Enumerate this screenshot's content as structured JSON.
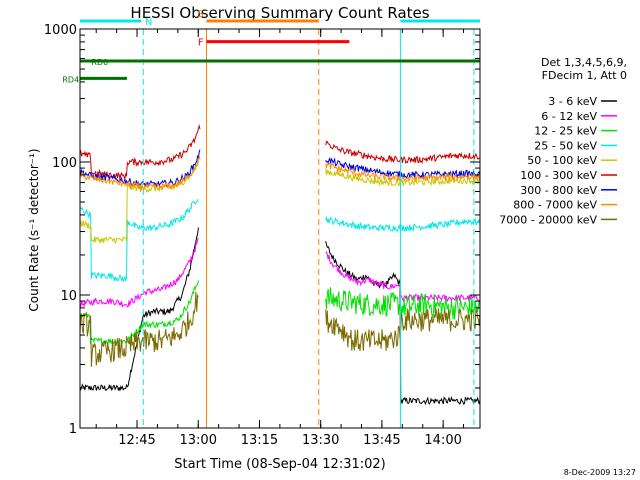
{
  "chart_data": {
    "type": "line",
    "title": "HESSI Observing Summary Count Rates",
    "xlabel": "Start Time (08-Sep-04 12:31:02)",
    "ylabel": "Count Rate (s⁻¹ detector⁻¹)",
    "yscale": "log",
    "ylim": [
      1,
      1000
    ],
    "xlim_min": [
      0,
      98
    ],
    "x_unit": "minutes since 12:31:02",
    "y_ticks": [
      {
        "v": 1,
        "label": "1"
      },
      {
        "v": 10,
        "label": "10"
      },
      {
        "v": 100,
        "label": "100"
      },
      {
        "v": 1000,
        "label": "1000"
      }
    ],
    "x_ticks": [
      {
        "t": 13.97,
        "label": "12:45"
      },
      {
        "t": 28.97,
        "label": "13:00"
      },
      {
        "t": 43.97,
        "label": "13:15"
      },
      {
        "t": 58.97,
        "label": "13:30"
      },
      {
        "t": 73.97,
        "label": "13:45"
      },
      {
        "t": 88.97,
        "label": "14:00"
      }
    ],
    "legend": {
      "header": [
        "Det 1,3,4,5,6,9,",
        "FDecim 1, Att 0"
      ],
      "entries": [
        {
          "label": "3 - 6 keV",
          "color": "#000000"
        },
        {
          "label": "6 - 12 keV",
          "color": "#ff00ff"
        },
        {
          "label": "12 - 25 keV",
          "color": "#00e000"
        },
        {
          "label": "25 - 50 keV",
          "color": "#00e8e8"
        },
        {
          "label": "50 - 100 keV",
          "color": "#c8c800"
        },
        {
          "label": "100 - 300 keV",
          "color": "#cc0000"
        },
        {
          "label": "300 - 800 keV",
          "color": "#0000e0"
        },
        {
          "label": "800 - 7000 keV",
          "color": "#ff8c00"
        },
        {
          "label": "7000 - 20000 keV",
          "color": "#7a6a00"
        }
      ]
    },
    "flags": [
      {
        "label": "N",
        "color": "#00e8e8",
        "row": 1000,
        "segments": [
          [
            0,
            15
          ],
          [
            78.5,
            98
          ]
        ]
      },
      {
        "label": "S",
        "color": "#ff8000",
        "row": 1000,
        "segments": [
          [
            31,
            58.5
          ]
        ]
      },
      {
        "label": "F",
        "color": "#ff0000",
        "row": 700,
        "segments": [
          [
            31,
            66
          ]
        ]
      },
      {
        "label": "RD0",
        "color": "#007000",
        "row": 500,
        "segments": [
          [
            0,
            98
          ]
        ]
      },
      {
        "label": "RD4",
        "color": "#007000",
        "row": 370,
        "segments": [
          [
            0,
            11.5
          ]
        ]
      }
    ],
    "vertical_markers": [
      {
        "t": 15.5,
        "color": "#00e8e8",
        "style": "dashed"
      },
      {
        "t": 31.0,
        "color": "#ff8000",
        "style": "solid"
      },
      {
        "t": 58.5,
        "color": "#ff8000",
        "style": "dashed"
      },
      {
        "t": 78.5,
        "color": "#00e8e8",
        "style": "solid"
      },
      {
        "t": 96.5,
        "color": "#00e8e8",
        "style": "dashed"
      }
    ],
    "segments": [
      [
        0,
        30.2
      ],
      [
        60.2,
        98
      ]
    ],
    "series": [
      {
        "label": "3 - 6 keV",
        "color": "#000000",
        "seg1": [
          [
            0,
            2
          ],
          [
            2.5,
            2
          ],
          [
            7,
            2
          ],
          [
            11.5,
            2
          ],
          [
            15.5,
            7
          ],
          [
            18,
            7.5
          ],
          [
            22,
            7.5
          ],
          [
            25,
            10
          ],
          [
            27,
            16
          ],
          [
            29,
            32
          ]
        ],
        "seg2": [
          [
            60.2,
            24
          ],
          [
            62,
            19
          ],
          [
            65,
            15
          ],
          [
            68,
            13
          ],
          [
            70,
            14
          ],
          [
            72,
            12
          ],
          [
            75,
            12
          ],
          [
            77,
            14
          ],
          [
            78.4,
            12
          ],
          [
            78.6,
            1.6
          ],
          [
            83,
            1.6
          ],
          [
            88,
            1.6
          ],
          [
            93,
            1.6
          ],
          [
            98,
            1.6
          ]
        ]
      },
      {
        "label": "6 - 12 keV",
        "color": "#ff00ff",
        "seg1": [
          [
            0,
            8.5
          ],
          [
            4,
            9
          ],
          [
            8,
            9
          ],
          [
            11.5,
            8.5
          ],
          [
            14,
            9.5
          ],
          [
            16,
            10.5
          ],
          [
            20,
            11
          ],
          [
            24,
            13
          ],
          [
            27,
            18
          ],
          [
            29,
            26
          ]
        ],
        "seg2": [
          [
            60.2,
            21
          ],
          [
            62,
            17
          ],
          [
            65,
            14
          ],
          [
            68,
            12.5
          ],
          [
            71,
            13
          ],
          [
            73,
            12
          ],
          [
            76,
            11.5
          ],
          [
            78.4,
            12
          ],
          [
            78.6,
            9.5
          ],
          [
            83,
            9.5
          ],
          [
            88,
            9.5
          ],
          [
            93,
            9.5
          ],
          [
            98,
            9.5
          ]
        ]
      },
      {
        "label": "12 - 25 keV",
        "color": "#00e000",
        "seg1": [
          [
            0,
            7
          ],
          [
            2.5,
            7
          ],
          [
            2.6,
            4.5
          ],
          [
            7,
            4.5
          ],
          [
            11.5,
            4.5
          ],
          [
            15.5,
            6
          ],
          [
            20,
            6
          ],
          [
            24,
            6.5
          ],
          [
            27,
            9
          ],
          [
            29,
            13
          ]
        ],
        "seg2": [
          [
            60.2,
            9.5
          ],
          [
            65,
            9
          ],
          [
            70,
            8.5
          ],
          [
            75,
            8.5
          ],
          [
            78.4,
            8.5
          ],
          [
            78.6,
            8
          ],
          [
            85,
            8.5
          ],
          [
            90,
            8
          ],
          [
            98,
            8
          ]
        ]
      },
      {
        "label": "25 - 50 keV",
        "color": "#00e8e8",
        "seg1": [
          [
            0,
            45
          ],
          [
            1,
            43
          ],
          [
            2.6,
            40
          ],
          [
            2.7,
            14
          ],
          [
            7,
            14
          ],
          [
            11.5,
            13
          ],
          [
            11.6,
            36
          ],
          [
            14,
            32
          ],
          [
            18,
            32
          ],
          [
            22,
            34
          ],
          [
            25,
            38
          ],
          [
            27,
            45
          ],
          [
            29,
            55
          ]
        ],
        "seg2": [
          [
            60.2,
            37
          ],
          [
            64,
            35
          ],
          [
            68,
            33
          ],
          [
            72,
            32
          ],
          [
            76,
            32
          ],
          [
            80,
            32
          ],
          [
            85,
            33
          ],
          [
            90,
            34
          ],
          [
            95,
            36
          ],
          [
            98,
            35
          ]
        ]
      },
      {
        "label": "50 - 100 keV",
        "color": "#c8c800",
        "seg1": [
          [
            0,
            35
          ],
          [
            2.6,
            33
          ],
          [
            2.7,
            26
          ],
          [
            7,
            26
          ],
          [
            11.5,
            26
          ],
          [
            11.6,
            65
          ],
          [
            15,
            63
          ],
          [
            18,
            63
          ],
          [
            22,
            64
          ],
          [
            25,
            70
          ],
          [
            27,
            80
          ],
          [
            29,
            100
          ]
        ],
        "seg2": [
          [
            60.2,
            85
          ],
          [
            64,
            80
          ],
          [
            68,
            75
          ],
          [
            72,
            72
          ],
          [
            76,
            70
          ],
          [
            80,
            70
          ],
          [
            85,
            71
          ],
          [
            90,
            72
          ],
          [
            95,
            73
          ],
          [
            98,
            72
          ]
        ]
      },
      {
        "label": "100 - 300 keV",
        "color": "#cc0000",
        "seg1": [
          [
            0,
            115
          ],
          [
            2.6,
            110
          ],
          [
            2.7,
            83
          ],
          [
            7,
            80
          ],
          [
            11.5,
            78
          ],
          [
            11.6,
            100
          ],
          [
            15,
            100
          ],
          [
            19,
            100
          ],
          [
            23,
            105
          ],
          [
            26,
            120
          ],
          [
            28,
            145
          ],
          [
            29.5,
            190
          ]
        ],
        "seg2": [
          [
            60.2,
            140
          ],
          [
            63,
            125
          ],
          [
            66,
            118
          ],
          [
            70,
            112
          ],
          [
            74,
            106
          ],
          [
            78,
            104
          ],
          [
            83,
            104
          ],
          [
            88,
            108
          ],
          [
            92,
            112
          ],
          [
            95,
            112
          ],
          [
            98,
            110
          ]
        ]
      },
      {
        "label": "300 - 800 keV",
        "color": "#0000e0",
        "seg1": [
          [
            0,
            85
          ],
          [
            3,
            78
          ],
          [
            7,
            76
          ],
          [
            11.5,
            72
          ],
          [
            15,
            68
          ],
          [
            19,
            68
          ],
          [
            23,
            70
          ],
          [
            26,
            78
          ],
          [
            28,
            95
          ],
          [
            29.5,
            120
          ]
        ],
        "seg2": [
          [
            60.2,
            105
          ],
          [
            64,
            95
          ],
          [
            68,
            90
          ],
          [
            72,
            85
          ],
          [
            76,
            82
          ],
          [
            80,
            80
          ],
          [
            85,
            80
          ],
          [
            90,
            81
          ],
          [
            95,
            82
          ],
          [
            98,
            80
          ]
        ]
      },
      {
        "label": "800 - 7000 keV",
        "color": "#ff8c00",
        "seg1": [
          [
            0,
            80
          ],
          [
            3,
            75
          ],
          [
            7,
            72
          ],
          [
            11.5,
            68
          ],
          [
            15,
            65
          ],
          [
            19,
            65
          ],
          [
            23,
            66
          ],
          [
            26,
            74
          ],
          [
            28,
            88
          ],
          [
            29.5,
            110
          ]
        ],
        "seg2": [
          [
            60.2,
            95
          ],
          [
            64,
            88
          ],
          [
            68,
            82
          ],
          [
            72,
            78
          ],
          [
            76,
            76
          ],
          [
            80,
            75
          ],
          [
            85,
            76
          ],
          [
            90,
            77
          ],
          [
            95,
            78
          ],
          [
            98,
            76
          ]
        ]
      },
      {
        "label": "7000 - 20000 keV",
        "color": "#7a6a00",
        "seg1": [
          [
            0,
            6
          ],
          [
            2.6,
            6
          ],
          [
            2.7,
            3.5
          ],
          [
            7,
            3.8
          ],
          [
            11.5,
            4
          ],
          [
            15,
            4.5
          ],
          [
            20,
            4.5
          ],
          [
            24,
            5
          ],
          [
            27,
            6.5
          ],
          [
            29,
            10
          ]
        ],
        "seg2": [
          [
            60.2,
            6.5
          ],
          [
            63,
            6
          ],
          [
            67,
            4.5
          ],
          [
            71,
            4.5
          ],
          [
            75,
            4.5
          ],
          [
            78.4,
            5
          ],
          [
            78.6,
            6.5
          ],
          [
            85,
            6.5
          ],
          [
            90,
            6.5
          ],
          [
            98,
            6.5
          ]
        ]
      }
    ]
  },
  "footer": {
    "date_stamp": "8-Dec-2009 13:27"
  }
}
